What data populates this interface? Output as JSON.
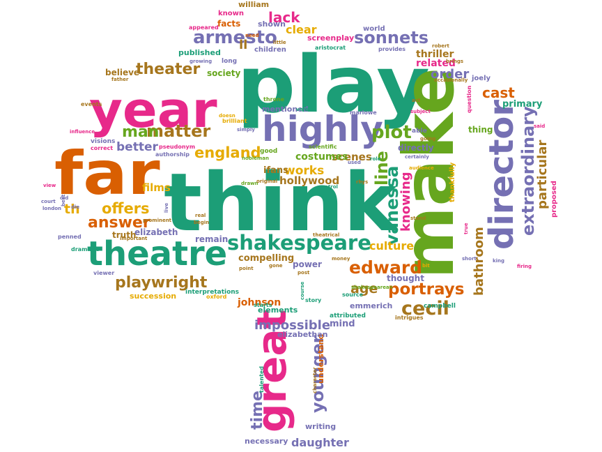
{
  "palette": {
    "green": "#1c9e77",
    "pink": "#e7298a",
    "purple": "#7570b3",
    "orange": "#d95f02",
    "olive": "#66a61e",
    "gold": "#e6ab02",
    "brown": "#a6761d"
  },
  "words": [
    {
      "text": "play",
      "color": "green"
    },
    {
      "text": "think",
      "color": "green"
    },
    {
      "text": "make",
      "color": "olive"
    },
    {
      "text": "far",
      "color": "orange"
    },
    {
      "text": "year",
      "color": "pink"
    },
    {
      "text": "great",
      "color": "pink"
    },
    {
      "text": "director",
      "color": "purple"
    },
    {
      "text": "highly",
      "color": "purple"
    },
    {
      "text": "theatre",
      "color": "green"
    },
    {
      "text": "shakespeare",
      "color": "green"
    },
    {
      "text": "sonnets",
      "color": "purple"
    },
    {
      "text": "armesto",
      "color": "purple"
    },
    {
      "text": "theater",
      "color": "brown"
    },
    {
      "text": "matter",
      "color": "brown"
    },
    {
      "text": "man",
      "color": "olive"
    },
    {
      "text": "plot",
      "color": "olive"
    },
    {
      "text": "england",
      "color": "gold"
    },
    {
      "text": "better",
      "color": "purple"
    },
    {
      "text": "offers",
      "color": "gold"
    },
    {
      "text": "answer",
      "color": "orange"
    },
    {
      "text": "th",
      "color": "gold"
    },
    {
      "text": "films",
      "color": "gold"
    },
    {
      "text": "playwright",
      "color": "brown"
    },
    {
      "text": "edward",
      "color": "orange"
    },
    {
      "text": "portrays",
      "color": "orange"
    },
    {
      "text": "cecil",
      "color": "brown"
    },
    {
      "text": "age",
      "color": "brown"
    },
    {
      "text": "vanessa",
      "color": "green"
    },
    {
      "text": "knowing",
      "color": "pink"
    },
    {
      "text": "line",
      "color": "olive"
    },
    {
      "text": "works",
      "color": "gold"
    },
    {
      "text": "hollywood",
      "color": "brown"
    },
    {
      "text": "scenes",
      "color": "brown"
    },
    {
      "text": "culture",
      "color": "gold"
    },
    {
      "text": "impossible",
      "color": "purple"
    },
    {
      "text": "younger",
      "color": "purple"
    },
    {
      "text": "time",
      "color": "purple"
    },
    {
      "text": "daughter",
      "color": "purple"
    },
    {
      "text": "cast",
      "color": "orange"
    },
    {
      "text": "extraordinary",
      "color": "purple"
    },
    {
      "text": "particular",
      "color": "brown"
    },
    {
      "text": "bathroom",
      "color": "brown"
    },
    {
      "text": "lack",
      "color": "pink"
    },
    {
      "text": "clear",
      "color": "gold"
    },
    {
      "text": "ll",
      "color": "brown"
    },
    {
      "text": "order",
      "color": "purple"
    },
    {
      "text": "johnson",
      "color": "orange"
    },
    {
      "text": "mind",
      "color": "purple"
    },
    {
      "text": "compelling",
      "color": "brown"
    },
    {
      "text": "power",
      "color": "purple"
    },
    {
      "text": "remain",
      "color": "purple"
    },
    {
      "text": "elizabeth",
      "color": "purple"
    },
    {
      "text": "truth",
      "color": "brown"
    },
    {
      "text": "thought",
      "color": "purple"
    },
    {
      "text": "costumes",
      "color": "olive"
    },
    {
      "text": "ifans",
      "color": "brown"
    },
    {
      "text": "directly",
      "color": "purple"
    },
    {
      "text": "mentioned",
      "color": "purple"
    },
    {
      "text": "emmerich",
      "color": "purple"
    },
    {
      "text": "elements",
      "color": "green"
    },
    {
      "text": "related",
      "color": "pink"
    },
    {
      "text": "thriller",
      "color": "brown"
    },
    {
      "text": "society",
      "color": "olive"
    },
    {
      "text": "believe",
      "color": "brown"
    },
    {
      "text": "published",
      "color": "green"
    },
    {
      "text": "children",
      "color": "purple"
    },
    {
      "text": "screenplay",
      "color": "pink"
    },
    {
      "text": "facts",
      "color": "orange"
    },
    {
      "text": "shown",
      "color": "purple"
    },
    {
      "text": "writing",
      "color": "purple"
    },
    {
      "text": "necessary",
      "color": "purple"
    },
    {
      "text": "primary",
      "color": "green"
    },
    {
      "text": "understand",
      "color": "orange"
    },
    {
      "text": "elizabethan",
      "color": "purple"
    },
    {
      "text": "succession",
      "color": "gold"
    },
    {
      "text": "interpretations",
      "color": "green"
    },
    {
      "text": "william",
      "color": "brown"
    },
    {
      "text": "known",
      "color": "pink"
    },
    {
      "text": "world",
      "color": "purple"
    },
    {
      "text": "long",
      "color": "purple"
    },
    {
      "text": "joely",
      "color": "purple"
    },
    {
      "text": "thing",
      "color": "olive"
    },
    {
      "text": "proposed",
      "color": "pink"
    },
    {
      "text": "thankfully",
      "color": "gold"
    },
    {
      "text": "campbell",
      "color": "green"
    },
    {
      "text": "intrigues",
      "color": "brown"
    },
    {
      "text": "attributed",
      "color": "green"
    },
    {
      "text": "source",
      "color": "green"
    },
    {
      "text": "story",
      "color": "green"
    },
    {
      "text": "starts",
      "color": "green"
    },
    {
      "text": "oxford",
      "color": "gold"
    },
    {
      "text": "dramatic",
      "color": "green"
    },
    {
      "text": "penned",
      "color": "purple"
    },
    {
      "text": "viewer",
      "color": "purple"
    },
    {
      "text": "important",
      "color": "brown"
    },
    {
      "text": "prominent",
      "color": "brown"
    },
    {
      "text": "visions",
      "color": "purple"
    },
    {
      "text": "correct",
      "color": "pink"
    },
    {
      "text": "authorship",
      "color": "purple"
    },
    {
      "text": "pseudonym",
      "color": "pink"
    },
    {
      "text": "influence",
      "color": "pink"
    },
    {
      "text": "events",
      "color": "brown"
    },
    {
      "text": "father",
      "color": "brown"
    },
    {
      "text": "throne",
      "color": "olive"
    },
    {
      "text": "brilliant",
      "color": "gold"
    },
    {
      "text": "doesn",
      "color": "gold"
    },
    {
      "text": "simply",
      "color": "purple"
    },
    {
      "text": "nobleman",
      "color": "olive"
    },
    {
      "text": "good",
      "color": "olive"
    },
    {
      "text": "scientific",
      "color": "olive"
    },
    {
      "text": "drawn",
      "color": "olive"
    },
    {
      "text": "original",
      "color": "brown"
    },
    {
      "text": "control",
      "color": "green"
    },
    {
      "text": "rhys",
      "color": "brown"
    },
    {
      "text": "theatrical",
      "color": "brown"
    },
    {
      "text": "real",
      "color": "brown"
    },
    {
      "text": "begin",
      "color": "brown"
    },
    {
      "text": "point",
      "color": "brown"
    },
    {
      "text": "gone",
      "color": "brown"
    },
    {
      "text": "post",
      "color": "brown"
    },
    {
      "text": "money",
      "color": "brown"
    },
    {
      "text": "talented",
      "color": "green"
    },
    {
      "text": "character",
      "color": "brown"
    },
    {
      "text": "shakespearean",
      "color": "olive"
    },
    {
      "text": "marlowe",
      "color": "purple"
    },
    {
      "text": "aristocrat",
      "color": "green"
    },
    {
      "text": "provides",
      "color": "purple"
    },
    {
      "text": "robert",
      "color": "brown"
    },
    {
      "text": "brings",
      "color": "brown"
    },
    {
      "text": "occasionally",
      "color": "brown"
    },
    {
      "text": "appeared",
      "color": "pink"
    },
    {
      "text": "need",
      "color": "orange"
    },
    {
      "text": "little",
      "color": "brown"
    },
    {
      "text": "growing",
      "color": "purple"
    },
    {
      "text": "subject",
      "color": "pink"
    },
    {
      "text": "question",
      "color": "pink"
    },
    {
      "text": "act",
      "color": "brown"
    },
    {
      "text": "able",
      "color": "purple"
    },
    {
      "text": "going",
      "color": "brown"
    },
    {
      "text": "certainly",
      "color": "purple"
    },
    {
      "text": "audience",
      "color": "gold"
    },
    {
      "text": "stand",
      "color": "brown"
    },
    {
      "text": "bit",
      "color": "gold"
    },
    {
      "text": "short",
      "color": "purple"
    },
    {
      "text": "king",
      "color": "purple"
    },
    {
      "text": "firing",
      "color": "pink"
    },
    {
      "text": "true",
      "color": "pink"
    },
    {
      "text": "said",
      "color": "pink"
    },
    {
      "text": "view",
      "color": "pink"
    },
    {
      "text": "court",
      "color": "purple"
    },
    {
      "text": "london",
      "color": "purple"
    },
    {
      "text": "old",
      "color": "purple"
    },
    {
      "text": "best",
      "color": "purple"
    },
    {
      "text": "die",
      "color": "purple"
    },
    {
      "text": "live",
      "color": "purple"
    },
    {
      "text": "used",
      "color": "purple"
    },
    {
      "text": "course",
      "color": "green"
    },
    {
      "text": "verse",
      "color": "green"
    },
    {
      "text": "role",
      "color": "green"
    }
  ]
}
